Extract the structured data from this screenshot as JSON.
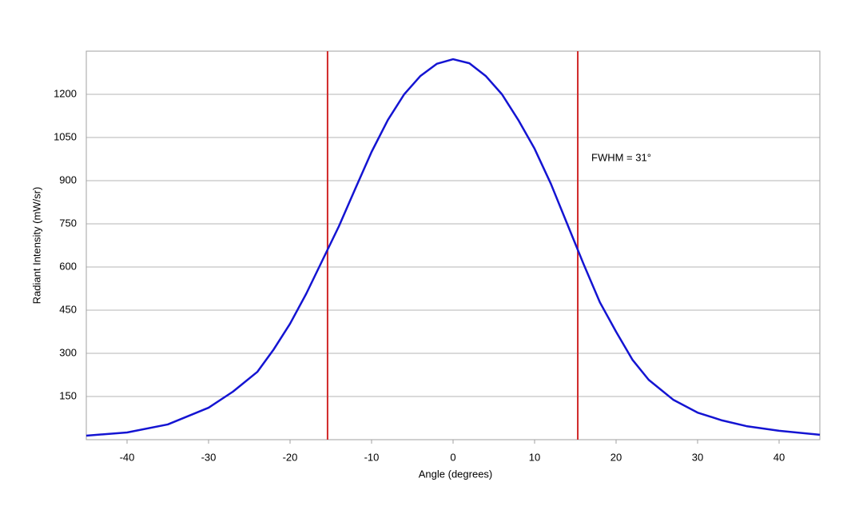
{
  "chart_data": {
    "type": "line",
    "x_label": "Angle (degrees)",
    "y_label": "Radiant Intensity (mW/sr)",
    "annotation": "FWHM = 31°",
    "x": [
      -45,
      -40,
      -35,
      -30,
      -27,
      -24,
      -22,
      -20,
      -18,
      -16,
      -14,
      -12,
      -10,
      -8,
      -6,
      -4,
      -2,
      0,
      2,
      4,
      6,
      8,
      10,
      12,
      14,
      16,
      18,
      20,
      22,
      24,
      27,
      30,
      33,
      36,
      40,
      45
    ],
    "series": [
      {
        "color": "#1414d2",
        "values": [
          14,
          25,
          53,
          111,
          167,
          236,
          314,
          403,
          508,
          625,
          742,
          872,
          1000,
          1111,
          1200,
          1264,
          1306,
          1322,
          1308,
          1264,
          1200,
          1111,
          1011,
          889,
          750,
          611,
          478,
          375,
          278,
          208,
          139,
          94,
          67,
          47,
          31,
          17
        ]
      }
    ],
    "vlines": [
      -15.4,
      15.3
    ],
    "vline_color": "#d02828",
    "xlim": [
      -45,
      45
    ],
    "ylim": [
      0,
      1350
    ],
    "xticks": [
      -40,
      -30,
      -20,
      -10,
      0,
      10,
      20,
      30,
      40
    ],
    "yticks": [
      150,
      300,
      450,
      600,
      750,
      900,
      1050,
      1200
    ],
    "grid": true
  }
}
